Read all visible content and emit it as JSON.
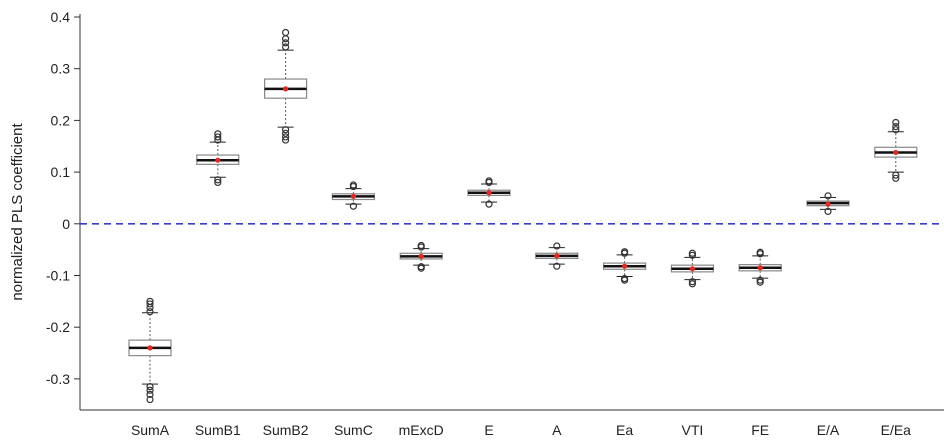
{
  "chart_data": {
    "type": "box",
    "title": "",
    "xlabel": "",
    "ylabel": "normalized PLS coefficient",
    "ylim": [
      -0.36,
      0.4
    ],
    "yticks": [
      -0.3,
      -0.2,
      -0.1,
      0,
      0.1,
      0.2,
      0.3,
      0.4
    ],
    "ytick_labels": [
      "-0.3",
      "-0.2",
      "-0.1",
      "0",
      "0.1",
      "0.2",
      "0.3",
      "0.4"
    ],
    "reference_line": {
      "y": 0,
      "style": "dashed",
      "color": "#3a3ad0"
    },
    "colors": {
      "box_fill": "#ffffff",
      "box_edge": "#888888",
      "median": "#111111",
      "mean_dot": "#e8281e",
      "whisker": "#555555",
      "outlier": "#333333"
    },
    "categories": [
      "SumA",
      "SumB1",
      "SumB2",
      "SumC",
      "mExcD",
      "E",
      "A",
      "Ea",
      "VTI",
      "FE",
      "E/A",
      "E/Ea"
    ],
    "boxes": [
      {
        "q1": -0.255,
        "median": -0.24,
        "q3": -0.225,
        "whisker_low": -0.31,
        "whisker_high": -0.172,
        "mean": -0.24,
        "outliers": [
          -0.315,
          -0.322,
          -0.33,
          -0.34,
          -0.17,
          -0.162,
          -0.155,
          -0.15
        ]
      },
      {
        "q1": 0.115,
        "median": 0.123,
        "q3": 0.133,
        "whisker_low": 0.09,
        "whisker_high": 0.158,
        "mean": 0.123,
        "outliers": [
          0.085,
          0.08,
          0.162,
          0.168,
          0.174
        ]
      },
      {
        "q1": 0.243,
        "median": 0.261,
        "q3": 0.28,
        "whisker_low": 0.187,
        "whisker_high": 0.336,
        "mean": 0.261,
        "outliers": [
          0.182,
          0.175,
          0.168,
          0.162,
          0.342,
          0.35,
          0.358,
          0.37
        ]
      },
      {
        "q1": 0.047,
        "median": 0.053,
        "q3": 0.058,
        "whisker_low": 0.038,
        "whisker_high": 0.068,
        "mean": 0.053,
        "outliers": [
          0.034,
          0.072,
          0.075
        ]
      },
      {
        "q1": -0.068,
        "median": -0.063,
        "q3": -0.057,
        "whisker_low": -0.08,
        "whisker_high": -0.048,
        "mean": -0.063,
        "outliers": [
          -0.083,
          -0.086,
          -0.045,
          -0.042
        ]
      },
      {
        "q1": 0.055,
        "median": 0.06,
        "q3": 0.065,
        "whisker_low": 0.042,
        "whisker_high": 0.077,
        "mean": 0.06,
        "outliers": [
          0.038,
          0.08,
          0.083
        ]
      },
      {
        "q1": -0.067,
        "median": -0.062,
        "q3": -0.057,
        "whisker_low": -0.078,
        "whisker_high": -0.046,
        "mean": -0.062,
        "outliers": [
          -0.082,
          -0.043
        ]
      },
      {
        "q1": -0.088,
        "median": -0.082,
        "q3": -0.076,
        "whisker_low": -0.102,
        "whisker_high": -0.06,
        "mean": -0.082,
        "outliers": [
          -0.106,
          -0.109,
          -0.057,
          -0.054
        ]
      },
      {
        "q1": -0.093,
        "median": -0.087,
        "q3": -0.08,
        "whisker_low": -0.108,
        "whisker_high": -0.065,
        "mean": -0.087,
        "outliers": [
          -0.112,
          -0.116,
          -0.061,
          -0.057
        ]
      },
      {
        "q1": -0.091,
        "median": -0.085,
        "q3": -0.079,
        "whisker_low": -0.105,
        "whisker_high": -0.062,
        "mean": -0.085,
        "outliers": [
          -0.109,
          -0.113,
          -0.058,
          -0.055
        ]
      },
      {
        "q1": 0.035,
        "median": 0.04,
        "q3": 0.044,
        "whisker_low": 0.028,
        "whisker_high": 0.051,
        "mean": 0.038,
        "outliers": [
          0.024,
          0.054
        ]
      },
      {
        "q1": 0.129,
        "median": 0.138,
        "q3": 0.148,
        "whisker_low": 0.1,
        "whisker_high": 0.178,
        "mean": 0.138,
        "outliers": [
          0.094,
          0.088,
          0.182,
          0.188,
          0.196
        ]
      }
    ]
  }
}
